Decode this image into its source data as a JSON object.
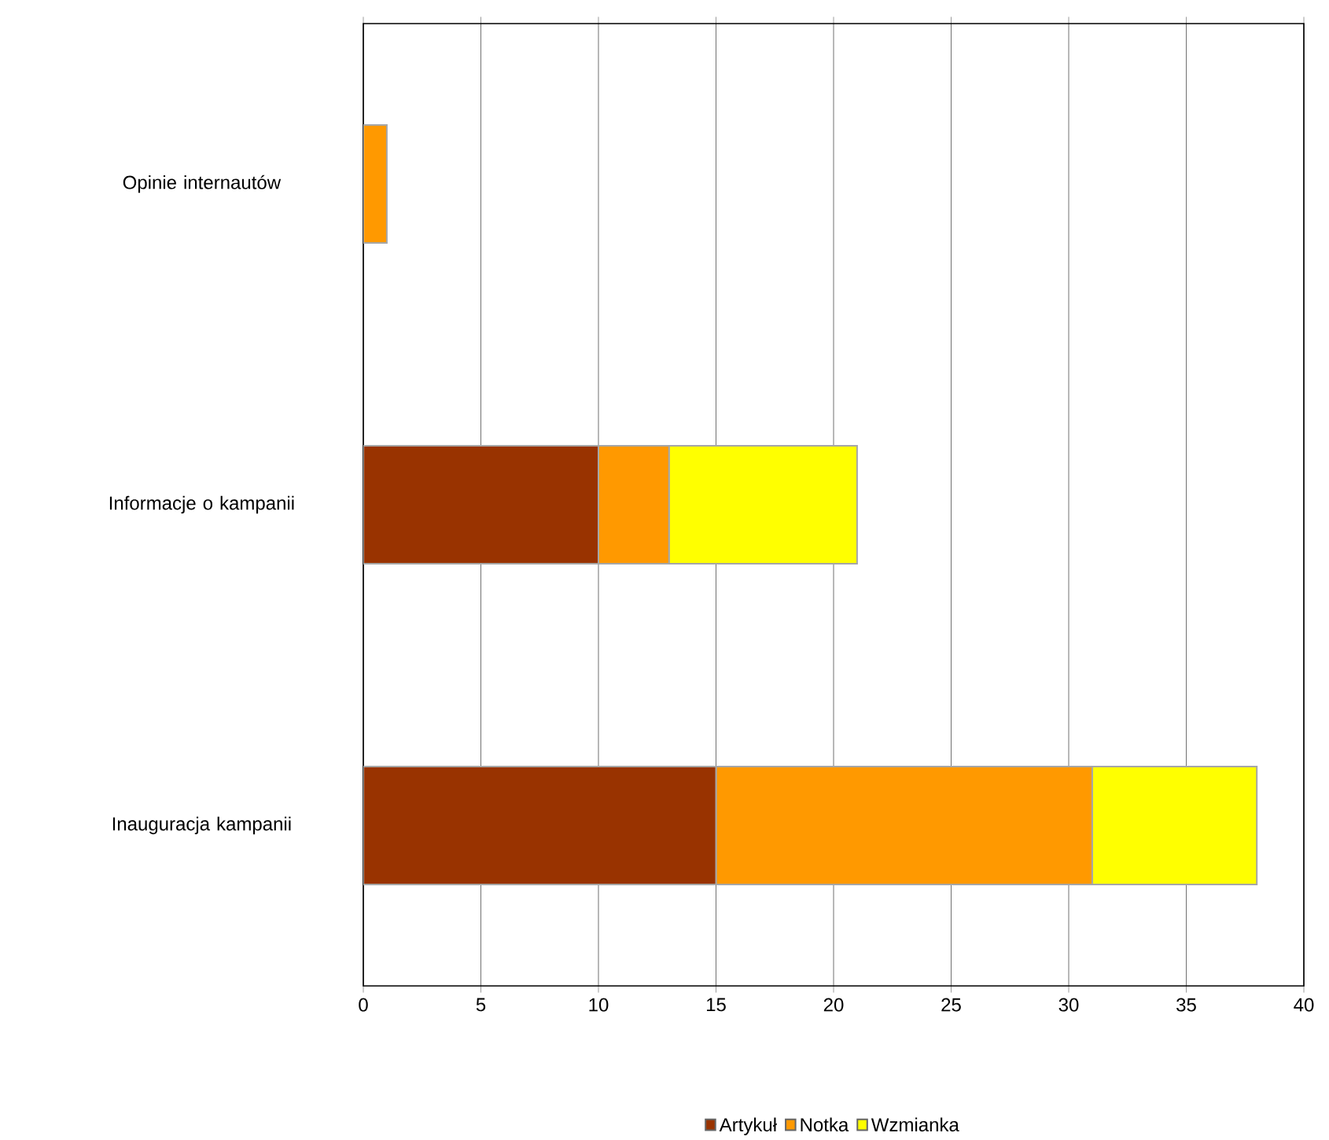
{
  "chart_data": {
    "type": "bar",
    "orientation": "horizontal",
    "stacked": true,
    "categories": [
      "Opinie internautów",
      "Informacje o kampanii",
      "Inauguracja kampanii"
    ],
    "series": [
      {
        "name": "Artykuł",
        "color": "#993300",
        "values": [
          0,
          10,
          15
        ]
      },
      {
        "name": "Notka",
        "color": "#ff9900",
        "values": [
          1,
          3,
          16
        ]
      },
      {
        "name": "Wzmianka",
        "color": "#ffff00",
        "values": [
          0,
          8,
          7
        ]
      }
    ],
    "xlim": [
      0,
      40
    ],
    "xticks": [
      0,
      5,
      10,
      15,
      20,
      25,
      30,
      35,
      40
    ],
    "grid": "x",
    "legend": "bottom"
  }
}
